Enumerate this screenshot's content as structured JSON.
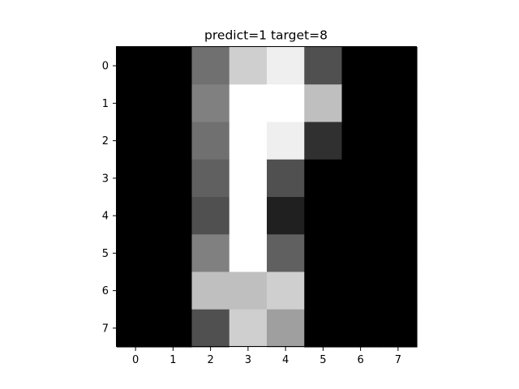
{
  "chart_data": {
    "type": "heatmap",
    "title": "predict=1 target=8",
    "xlabel": "",
    "ylabel": "",
    "colormap": "gray",
    "value_range": [
      0,
      16
    ],
    "x_ticks": [
      "0",
      "1",
      "2",
      "3",
      "4",
      "5",
      "6",
      "7"
    ],
    "y_ticks": [
      "0",
      "1",
      "2",
      "3",
      "4",
      "5",
      "6",
      "7"
    ],
    "grid": false,
    "values": [
      [
        0,
        0,
        7,
        13,
        15,
        5,
        0,
        0
      ],
      [
        0,
        0,
        8,
        16,
        16,
        12,
        0,
        0
      ],
      [
        0,
        0,
        7,
        16,
        15,
        3,
        0,
        0
      ],
      [
        0,
        0,
        6,
        16,
        5,
        0,
        0,
        0
      ],
      [
        0,
        0,
        5,
        16,
        2,
        0,
        0,
        0
      ],
      [
        0,
        0,
        8,
        16,
        6,
        0,
        0,
        0
      ],
      [
        0,
        0,
        12,
        12,
        13,
        0,
        0,
        0
      ],
      [
        0,
        0,
        5,
        13,
        10,
        0,
        0,
        0
      ]
    ]
  }
}
